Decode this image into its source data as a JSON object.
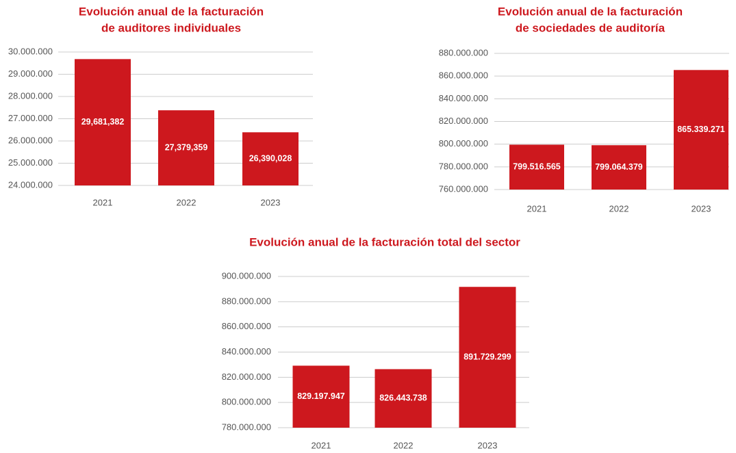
{
  "chart_data": [
    {
      "type": "bar",
      "title": [
        "Evolución anual de la facturación",
        "de auditores individuales"
      ],
      "categories": [
        "2021",
        "2022",
        "2023"
      ],
      "values": [
        29681382,
        27379359,
        26390028
      ],
      "value_labels": [
        "29,681,382",
        "27,379,359",
        "26,390,028"
      ],
      "color": "#cd181e",
      "ylim": [
        24000000,
        30000000
      ],
      "yticks": [
        {
          "value": 24000000,
          "label": "24.000.000"
        },
        {
          "value": 25000000,
          "label": "25.000.000"
        },
        {
          "value": 26000000,
          "label": "26.000.000"
        },
        {
          "value": 27000000,
          "label": "27.000.000"
        },
        {
          "value": 28000000,
          "label": "28.000.000"
        },
        {
          "value": 29000000,
          "label": "29.000.000"
        },
        {
          "value": 30000000,
          "label": "30.000.000"
        }
      ],
      "grid": true
    },
    {
      "type": "bar",
      "title": [
        "Evolución anual de la facturación",
        "de sociedades de auditoría"
      ],
      "categories": [
        "2021",
        "2022",
        "2023"
      ],
      "values": [
        799516565,
        799064379,
        865339271
      ],
      "value_labels": [
        "799.516.565",
        "799.064.379",
        "865.339.271"
      ],
      "color": "#cd181e",
      "ylim": [
        760000000,
        880000000
      ],
      "yticks": [
        {
          "value": 760000000,
          "label": "760.000.000"
        },
        {
          "value": 780000000,
          "label": "780.000.000"
        },
        {
          "value": 800000000,
          "label": "800.000.000"
        },
        {
          "value": 820000000,
          "label": "820.000.000"
        },
        {
          "value": 840000000,
          "label": "840.000.000"
        },
        {
          "value": 860000000,
          "label": "860.000.000"
        },
        {
          "value": 880000000,
          "label": "880.000.000"
        }
      ],
      "grid": true
    },
    {
      "type": "bar",
      "title": [
        "Evolución anual de la facturación total del sector"
      ],
      "categories": [
        "2021",
        "2022",
        "2023"
      ],
      "values": [
        829197947,
        826443738,
        891729299
      ],
      "value_labels": [
        "829.197.947",
        "826.443.738",
        "891.729.299"
      ],
      "color": "#cd181e",
      "ylim": [
        780000000,
        900000000
      ],
      "yticks": [
        {
          "value": 780000000,
          "label": "780.000.000"
        },
        {
          "value": 800000000,
          "label": "800.000.000"
        },
        {
          "value": 820000000,
          "label": "820.000.000"
        },
        {
          "value": 840000000,
          "label": "840.000.000"
        },
        {
          "value": 860000000,
          "label": "860.000.000"
        },
        {
          "value": 880000000,
          "label": "880.000.000"
        },
        {
          "value": 900000000,
          "label": "900.000.000"
        }
      ],
      "grid": true
    }
  ]
}
